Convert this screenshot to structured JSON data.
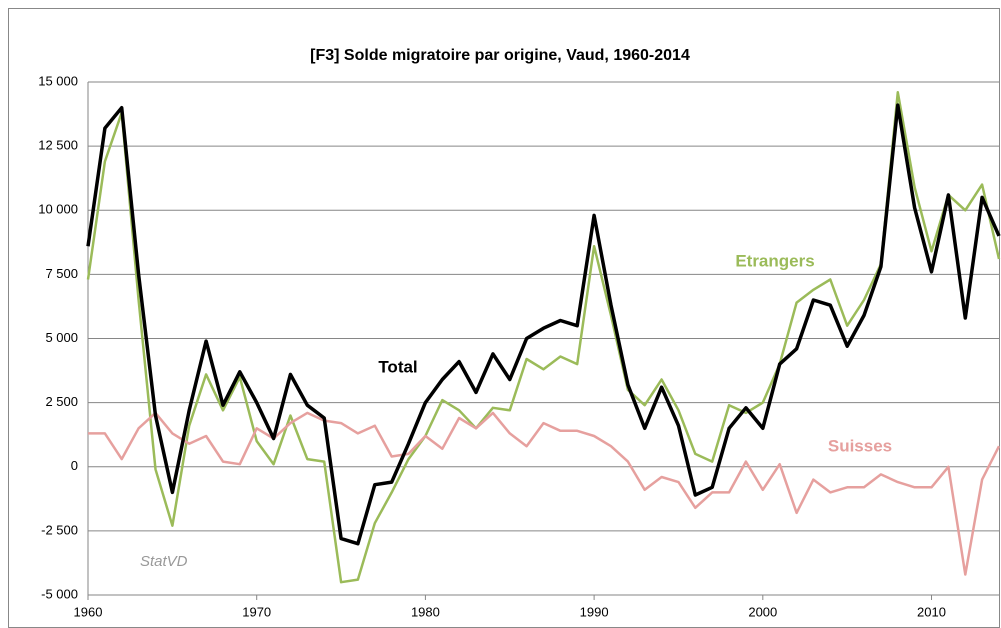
{
  "chart_data": {
    "type": "line",
    "title": "[F3]  Solde migratoire par origine, Vaud, 1960-2014",
    "x": [
      1960,
      1961,
      1962,
      1963,
      1964,
      1965,
      1966,
      1967,
      1968,
      1969,
      1970,
      1971,
      1972,
      1973,
      1974,
      1975,
      1976,
      1977,
      1978,
      1979,
      1980,
      1981,
      1982,
      1983,
      1984,
      1985,
      1986,
      1987,
      1988,
      1989,
      1990,
      1991,
      1992,
      1993,
      1994,
      1995,
      1996,
      1997,
      1998,
      1999,
      2000,
      2001,
      2002,
      2003,
      2004,
      2005,
      2006,
      2007,
      2008,
      2009,
      2010,
      2011,
      2012,
      2013,
      2014
    ],
    "series": [
      {
        "name": "Etrangers",
        "color": "#9bbb59",
        "values": [
          7300,
          11900,
          13800,
          6500,
          -100,
          -2300,
          1600,
          3600,
          2200,
          3500,
          1000,
          100,
          2000,
          300,
          200,
          -4500,
          -4400,
          -2200,
          -1000,
          300,
          1200,
          2600,
          2200,
          1500,
          2300,
          2200,
          4200,
          3800,
          4300,
          4000,
          8600,
          5900,
          3000,
          2400,
          3400,
          2200,
          500,
          200,
          2400,
          2100,
          2500,
          4000,
          6400,
          6900,
          7300,
          5500,
          6500,
          7900,
          14600,
          10900,
          8400,
          10600,
          10000,
          11000,
          8100
        ]
      },
      {
        "name": "Suisses",
        "color": "#e6a09e",
        "values": [
          1300,
          1300,
          300,
          1500,
          2100,
          1300,
          900,
          1200,
          200,
          100,
          1500,
          1100,
          1700,
          2100,
          1800,
          1700,
          1300,
          1600,
          400,
          500,
          1200,
          700,
          1900,
          1500,
          2100,
          1300,
          800,
          1700,
          1400,
          1400,
          1200,
          800,
          200,
          -900,
          -400,
          -600,
          -1600,
          -1000,
          -1000,
          200,
          -900,
          100,
          -1800,
          -500,
          -1000,
          -800,
          -800,
          -300,
          -600,
          -800,
          -800,
          0,
          -4200,
          -500,
          800
        ]
      },
      {
        "name": "Total",
        "color": "#000000",
        "values": [
          8600,
          13200,
          14000,
          7500,
          2000,
          -1000,
          2200,
          4900,
          2400,
          3700,
          2500,
          1100,
          3600,
          2400,
          1900,
          -2800,
          -3000,
          -700,
          -600,
          900,
          2500,
          3400,
          4100,
          2900,
          4400,
          3400,
          5000,
          5400,
          5700,
          5500,
          9800,
          6300,
          3200,
          1500,
          3100,
          1600,
          -1100,
          -800,
          1500,
          2300,
          1500,
          4000,
          4600,
          6500,
          6300,
          4700,
          5900,
          7800,
          14100,
          10100,
          7600,
          10600,
          5800,
          10500,
          9000
        ]
      }
    ],
    "xlim": [
      1960,
      2014
    ],
    "xticks": [
      1960,
      1970,
      1980,
      1990,
      2000,
      2010
    ],
    "ylim": [
      -5000,
      15000
    ],
    "yticks": [
      {
        "value": -5000,
        "label": "-5 000"
      },
      {
        "value": -2500,
        "label": "-2 500"
      },
      0,
      {
        "value": 2500,
        "label": "2 500"
      },
      {
        "value": 5000,
        "label": "5 000"
      },
      {
        "value": 7500,
        "label": "7 500"
      },
      {
        "value": 10000,
        "label": "10 000"
      },
      {
        "value": 12500,
        "label": "12 500"
      },
      {
        "value": 15000,
        "label": "15 000"
      }
    ],
    "grid": true,
    "source": "StatVD"
  }
}
